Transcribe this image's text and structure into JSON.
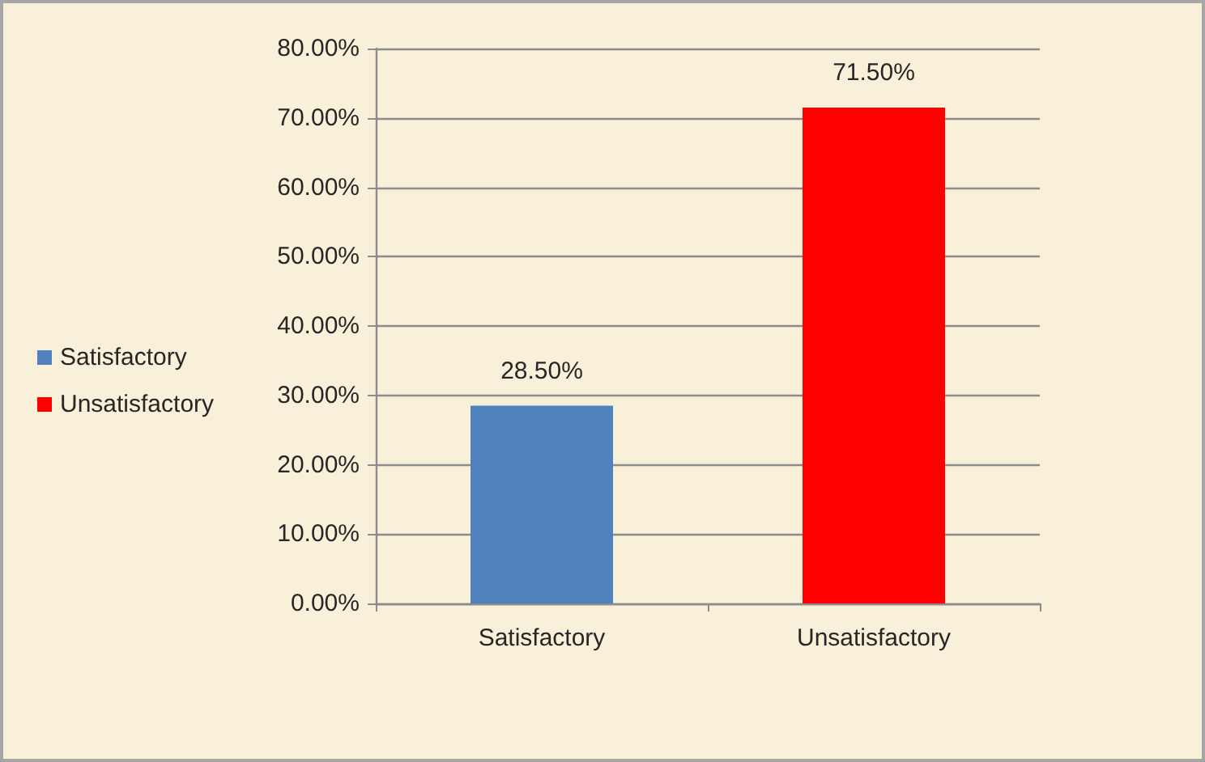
{
  "chart_data": {
    "type": "bar",
    "categories": [
      "Satisfactory",
      "Unsatisfactory"
    ],
    "series": [
      {
        "name": "Satisfactory",
        "color": "#4f81bd",
        "values": [
          28.5,
          null
        ],
        "value_labels": [
          "28.50%",
          null
        ]
      },
      {
        "name": "Unsatisfactory",
        "color": "#ff0000",
        "values": [
          null,
          71.5
        ],
        "value_labels": [
          null,
          "71.50%"
        ]
      }
    ],
    "ylim": [
      0,
      80
    ],
    "yticks": [
      {
        "value": 0,
        "label": "0.00%"
      },
      {
        "value": 10,
        "label": "10.00%"
      },
      {
        "value": 20,
        "label": "20.00%"
      },
      {
        "value": 30,
        "label": "30.00%"
      },
      {
        "value": 40,
        "label": "40.00%"
      },
      {
        "value": 50,
        "label": "50.00%"
      },
      {
        "value": 60,
        "label": "60.00%"
      },
      {
        "value": 70,
        "label": "70.00%"
      },
      {
        "value": 80,
        "label": "80.00%"
      }
    ],
    "grid": "y",
    "legend": "left"
  }
}
